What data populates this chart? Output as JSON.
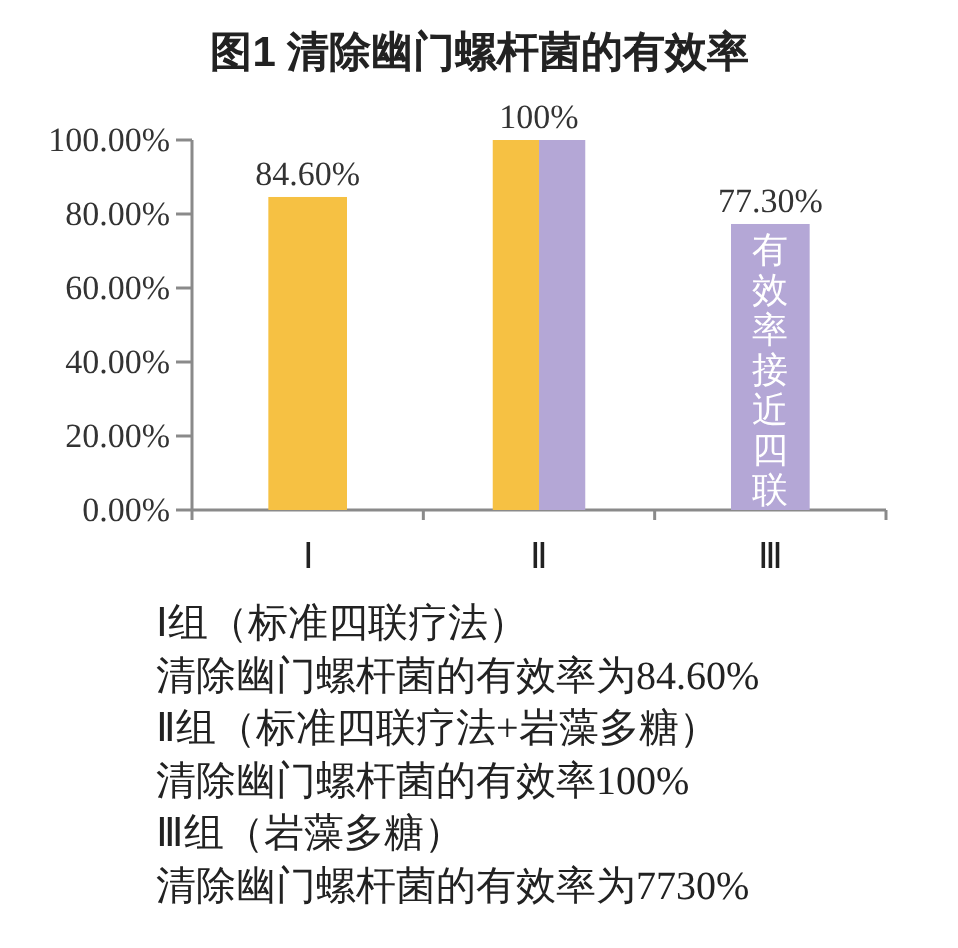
{
  "chart_data": {
    "type": "bar",
    "title": "图1 清除幽门螺杆菌的有效率",
    "categories": [
      "Ⅰ",
      "Ⅱ",
      "Ⅲ"
    ],
    "series": [
      {
        "color": "#f6c143",
        "values": [
          84.6,
          100,
          null
        ],
        "value_labels": [
          "84.60%",
          "100%",
          null
        ]
      },
      {
        "color": "#b4a7d6",
        "values": [
          null,
          100,
          77.3
        ],
        "value_labels": [
          null,
          null,
          "77.30%"
        ]
      }
    ],
    "ylim": [
      0,
      100
    ],
    "yticks": [
      {
        "value": 0,
        "label": "0.00%"
      },
      {
        "value": 20,
        "label": "20.00%"
      },
      {
        "value": 40,
        "label": "40.00%"
      },
      {
        "value": 60,
        "label": "60.00%"
      },
      {
        "value": 80,
        "label": "80.00%"
      },
      {
        "value": 100,
        "label": "100.00%"
      }
    ],
    "annotations": [
      {
        "text": "有效率接近四联",
        "x": "Ⅲ",
        "y": 77.3
      },
      "Ⅰ组（标准四联疗法）",
      "清除幽门螺杆菌的有效率为84.60%",
      "Ⅱ组（标准四联疗法+岩藻多糖）",
      "清除幽门螺杆菌的有效率100%",
      "Ⅲ组（岩藻多糖）",
      "清除幽门螺杆菌的有效率为7730%"
    ]
  }
}
